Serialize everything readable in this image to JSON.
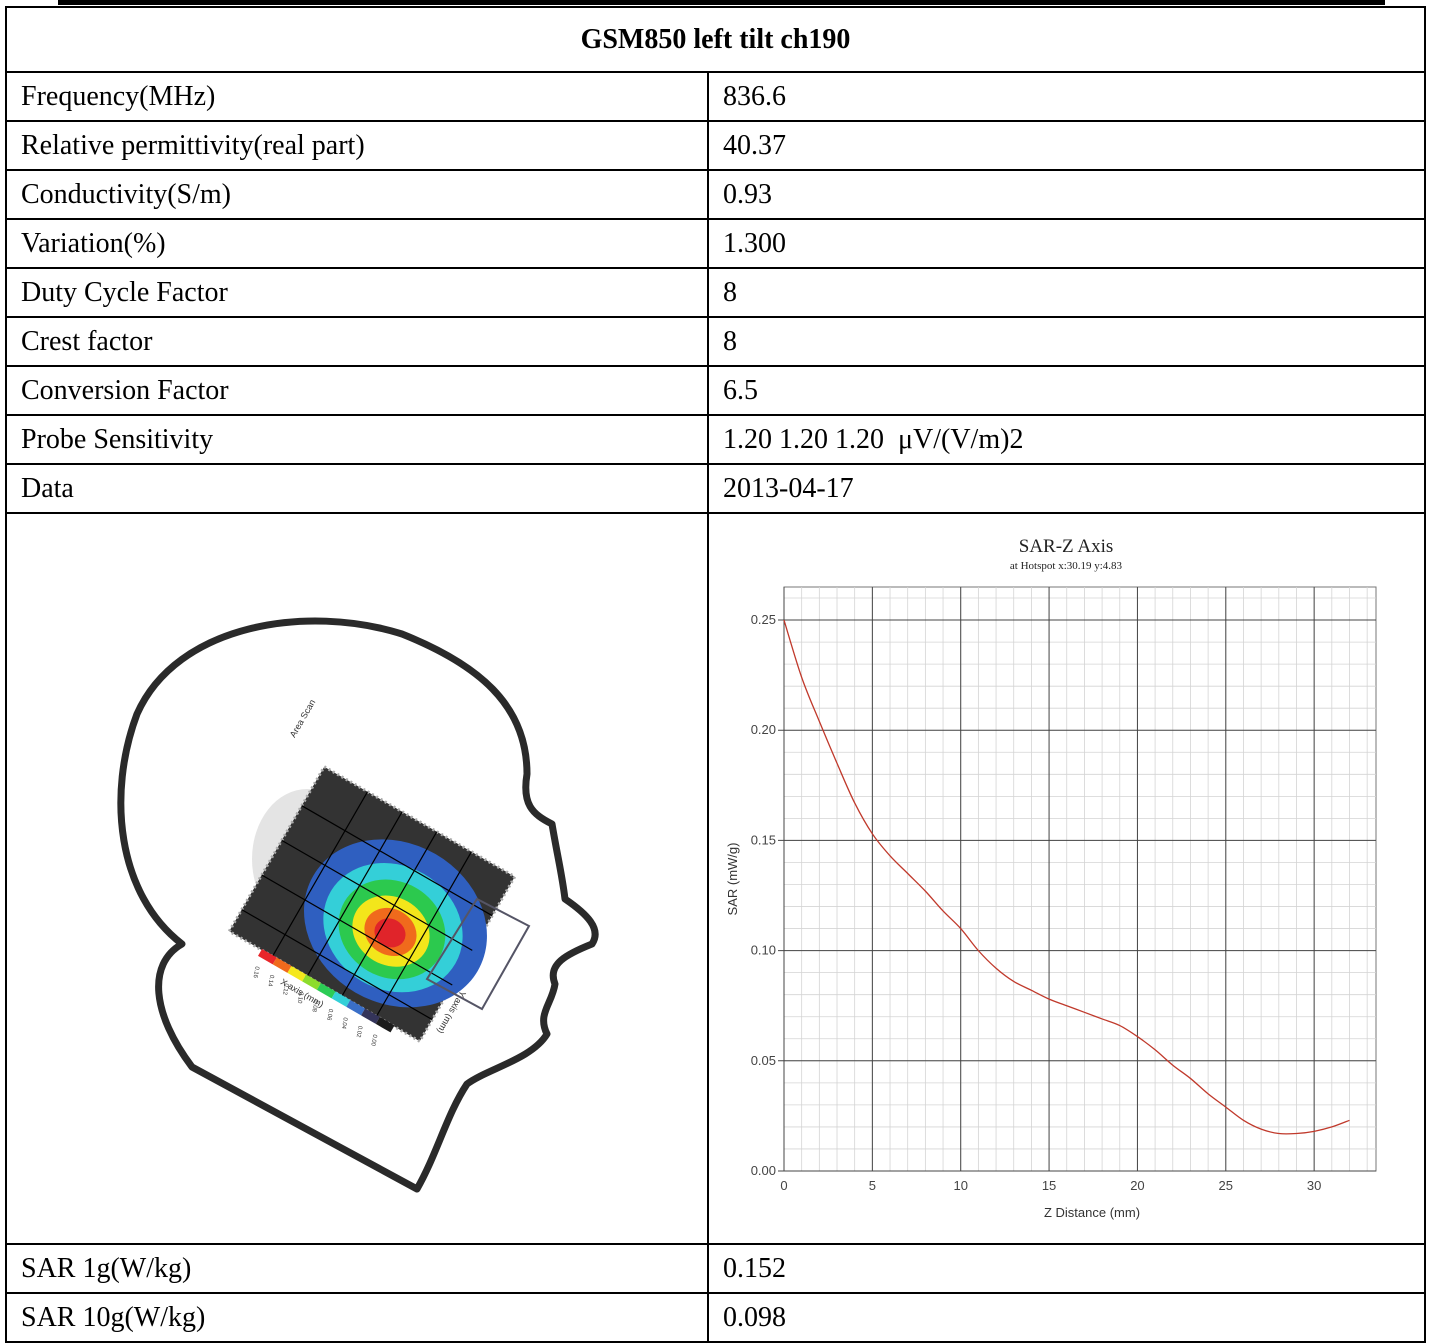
{
  "table": {
    "title": "GSM850 left tilt ch190",
    "rows": [
      {
        "label": "Frequency(MHz)",
        "value": "836.6"
      },
      {
        "label": "Relative permittivity(real part)",
        "value": "40.37"
      },
      {
        "label": "Conductivity(S/m)",
        "value": "0.93"
      },
      {
        "label": "Variation(%)",
        "value": "1.300"
      },
      {
        "label": "Duty Cycle Factor",
        "value": "8"
      },
      {
        "label": "Crest factor",
        "value": "8"
      },
      {
        "label": "Conversion Factor",
        "value": "6.5"
      },
      {
        "label": "Probe Sensitivity",
        "value": "1.20 1.20 1.20  μV/(V/m)2"
      },
      {
        "label": "Data",
        "value": "2013-04-17"
      }
    ],
    "bottom_rows": [
      {
        "label": "SAR 1g(W/kg)",
        "value": "0.152"
      },
      {
        "label": "SAR 10g(W/kg)",
        "value": "0.098"
      }
    ]
  },
  "head_scan": {
    "area_scan_label": "Area Scan",
    "x_axis_label": "X axis (mm)",
    "y_axis_label": "Y axis (mm)",
    "colorbar_ticks": [
      "0.16",
      "0.14",
      "0.12",
      "0.10",
      "0.08",
      "0.06",
      "0.04",
      "0.02",
      "0.00"
    ],
    "colorbar_colors": [
      "#e8262a",
      "#f06a1c",
      "#f5e81c",
      "#8ddc2c",
      "#2ccc55",
      "#33d0d8",
      "#3a6fc8",
      "#34345a",
      "#1c1c1c"
    ]
  },
  "chart_data": {
    "type": "line",
    "title": "SAR-Z Axis",
    "subtitle": "at Hotspot x:30.19 y:4.83",
    "xlabel": "Z Distance (mm)",
    "ylabel": "SAR (mW/g)",
    "xlim": [
      0,
      33.5
    ],
    "ylim": [
      0,
      0.265
    ],
    "x_ticks": [
      0,
      5,
      10,
      15,
      20,
      25,
      30
    ],
    "y_ticks": [
      0.0,
      0.05,
      0.1,
      0.15,
      0.2,
      0.25
    ],
    "x_tick_labels": [
      "0",
      "5",
      "10",
      "15",
      "20",
      "25",
      "30"
    ],
    "y_tick_labels": [
      "0.00",
      "0.05",
      "0.10",
      "0.15",
      "0.20",
      "0.25"
    ],
    "grid": true,
    "line_color": "#c0392b",
    "series": [
      {
        "x": [
          0,
          1,
          2,
          3,
          4,
          5,
          6,
          7,
          8,
          9,
          10,
          11,
          12,
          13,
          14,
          15,
          16,
          17,
          18,
          19,
          20,
          21,
          22,
          23,
          24,
          25,
          26,
          27,
          28,
          29,
          30,
          31,
          32
        ],
        "values": [
          0.25,
          0.224,
          0.204,
          0.185,
          0.167,
          0.153,
          0.143,
          0.135,
          0.127,
          0.118,
          0.11,
          0.1,
          0.092,
          0.086,
          0.082,
          0.078,
          0.075,
          0.072,
          0.069,
          0.066,
          0.061,
          0.055,
          0.048,
          0.042,
          0.035,
          0.029,
          0.023,
          0.019,
          0.017,
          0.017,
          0.018,
          0.02,
          0.023
        ]
      }
    ]
  }
}
